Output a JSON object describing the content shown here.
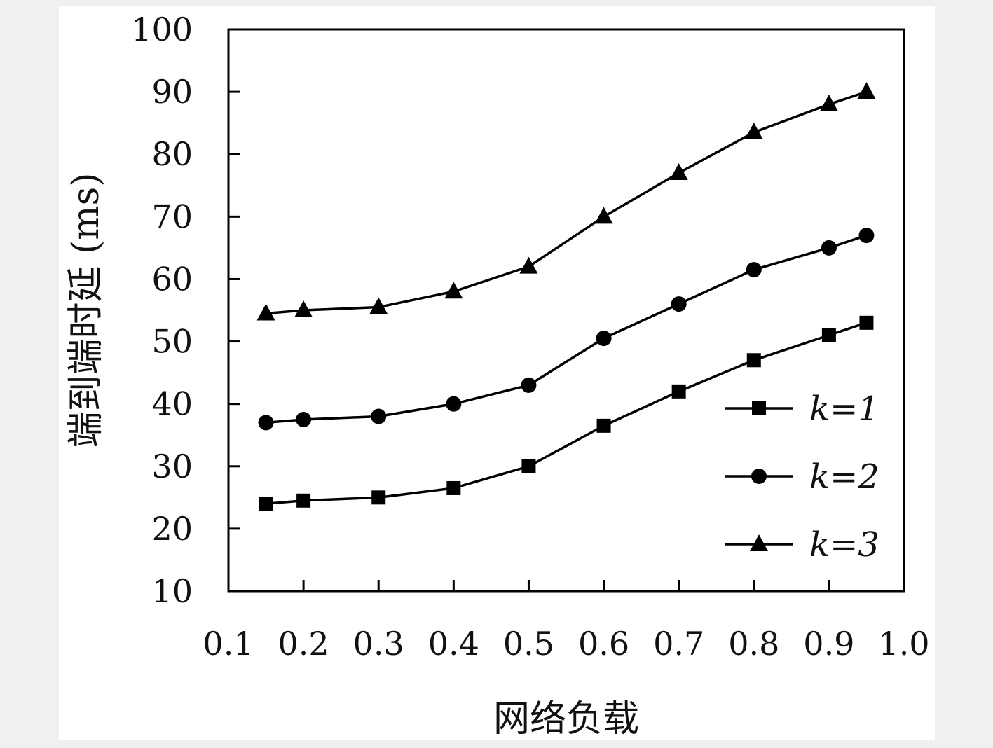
{
  "chart_data": {
    "type": "line",
    "xlabel": "网络负载",
    "ylabel": "端到端时延 (ms)",
    "xlim": [
      0.1,
      1.0
    ],
    "ylim": [
      10,
      100
    ],
    "xticks": [
      "0.1",
      "0.2",
      "0.3",
      "0.4",
      "0.5",
      "0.6",
      "0.7",
      "0.8",
      "0.9",
      "1.0"
    ],
    "yticks": [
      "10",
      "20",
      "30",
      "40",
      "50",
      "60",
      "70",
      "80",
      "90",
      "100"
    ],
    "x": [
      0.15,
      0.2,
      0.3,
      0.4,
      0.5,
      0.6,
      0.7,
      0.8,
      0.9,
      0.95
    ],
    "grid": false,
    "legend_position": "right",
    "series": [
      {
        "name": "k=1",
        "marker": "square",
        "values": [
          24.0,
          24.5,
          25.0,
          26.5,
          30.0,
          36.5,
          42.0,
          47.0,
          51.0,
          53.0
        ]
      },
      {
        "name": "k=2",
        "marker": "circle",
        "values": [
          37.0,
          37.5,
          38.0,
          40.0,
          43.0,
          50.5,
          56.0,
          61.5,
          65.0,
          67.0
        ]
      },
      {
        "name": "k=3",
        "marker": "triangle",
        "values": [
          54.5,
          55.0,
          55.5,
          58.0,
          62.0,
          70.0,
          77.0,
          83.5,
          88.0,
          90.0
        ]
      }
    ],
    "colors": {
      "line": "#000000",
      "background": "#ffffff",
      "page": "#f0f0f0"
    }
  }
}
